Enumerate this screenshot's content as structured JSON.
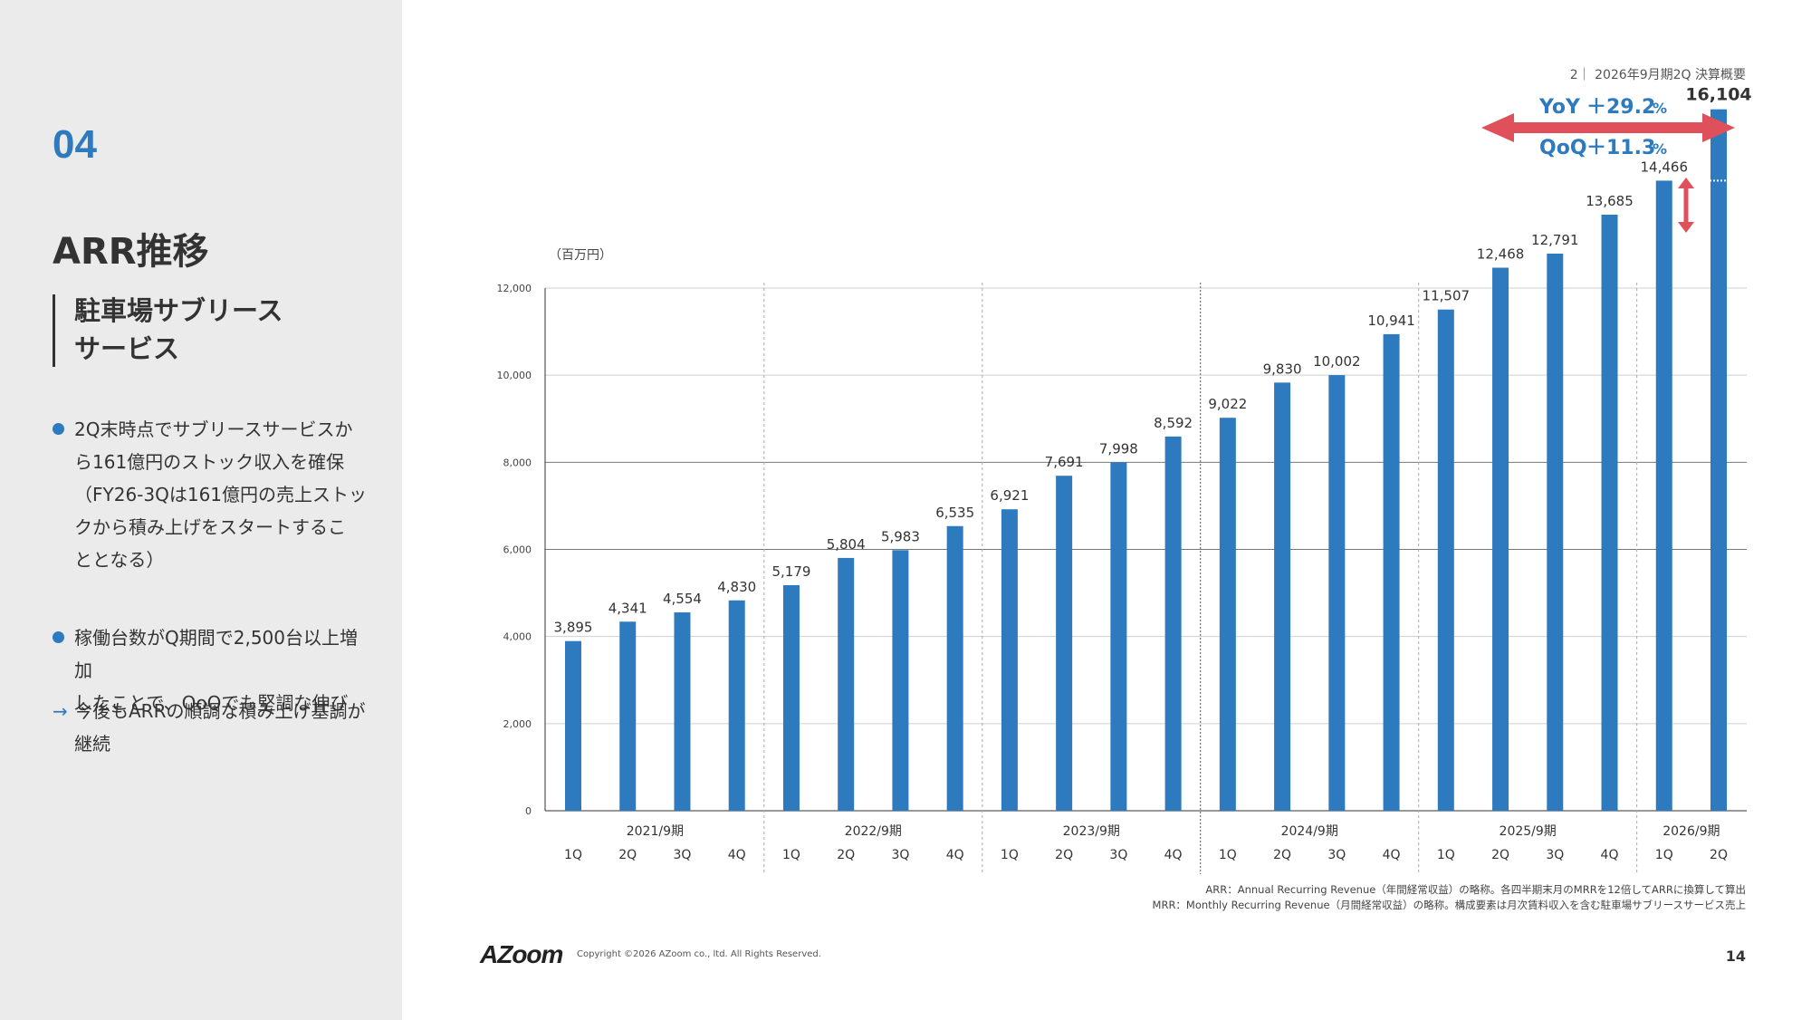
{
  "sidebar": {
    "section_number": "04",
    "title": "ARR推移",
    "subtitle_line1": "駐車場サブリース",
    "subtitle_line2": "サービス",
    "bullets": [
      {
        "lines": [
          "2Q末時点でサブリースサービスか",
          "ら161億円のストック収入を確保",
          "（FY26-3Qは161億円の売上ストッ",
          "クから積み上げをスタートするこ",
          "ととなる）"
        ]
      },
      {
        "lines": [
          "稼働台数がQ期間で2,500台以上増加",
          "したことで、QoQでも堅調な伸び"
        ]
      }
    ],
    "arrow_note": {
      "symbol": "→",
      "lines": [
        "今後もARRの順調な積み上げ基調が",
        "継続"
      ]
    }
  },
  "header": {
    "page_ref": "2｜ 2026年9月期2Q 決算概要"
  },
  "growth": {
    "yoy_label": "YoY",
    "yoy_value": "＋29.2",
    "qoq_label": "QoQ",
    "qoq_value": "＋11.3",
    "unit": "%"
  },
  "chart_data": {
    "type": "bar",
    "unit_label": "（百万円）",
    "ylim": [
      0,
      12000
    ],
    "yticks": [
      "0",
      "2,000",
      "4,000",
      "6,000",
      "8,000",
      "10,000",
      "12,000"
    ],
    "fiscal_years": [
      {
        "label": "2021/9期",
        "quarters": [
          "1Q",
          "2Q",
          "3Q",
          "4Q"
        ]
      },
      {
        "label": "2022/9期",
        "quarters": [
          "1Q",
          "2Q",
          "3Q",
          "4Q"
        ]
      },
      {
        "label": "2023/9期",
        "quarters": [
          "1Q",
          "2Q",
          "3Q",
          "4Q"
        ]
      },
      {
        "label": "2024/9期",
        "quarters": [
          "1Q",
          "2Q",
          "3Q",
          "4Q"
        ]
      },
      {
        "label": "2025/9期",
        "quarters": [
          "1Q",
          "2Q",
          "3Q",
          "4Q"
        ]
      },
      {
        "label": "2026/9期",
        "quarters": [
          "1Q",
          "2Q"
        ]
      }
    ],
    "values": [
      3895,
      4341,
      4554,
      4830,
      5179,
      5804,
      5983,
      6535,
      6921,
      7691,
      7998,
      8592,
      9022,
      9830,
      10002,
      10941,
      11507,
      12468,
      12791,
      13685,
      14466,
      16104
    ],
    "value_labels": [
      "3,895",
      "4,341",
      "4,554",
      "4,830",
      "5,179",
      "5,804",
      "5,983",
      "6,535",
      "6,921",
      "7,691",
      "7,998",
      "8,592",
      "9,022",
      "9,830",
      "10,002",
      "10,941",
      "11,507",
      "12,468",
      "12,791",
      "13,685",
      "14,466",
      "16,104"
    ],
    "grid": true,
    "bar_color": "#2e7abf"
  },
  "notes": {
    "arr": "ARR：Annual Recurring Revenue（年間経常収益）の略称。各四半期末月のMRRを12倍してARRに換算して算出",
    "mrr": "MRR：Monthly Recurring Revenue（月間経常収益）の略称。構成要素は月次賃料収入を含む駐車場サブリースサービス売上"
  },
  "footer": {
    "logo": "AZoom",
    "copyright": "Copyright ©2026 AZoom co., ltd. All Rights Reserved.",
    "page_number": "14"
  },
  "colors": {
    "accent": "#2e7abf",
    "arrow_red": "#e0505a",
    "sidebar_bg": "#ebebeb"
  }
}
